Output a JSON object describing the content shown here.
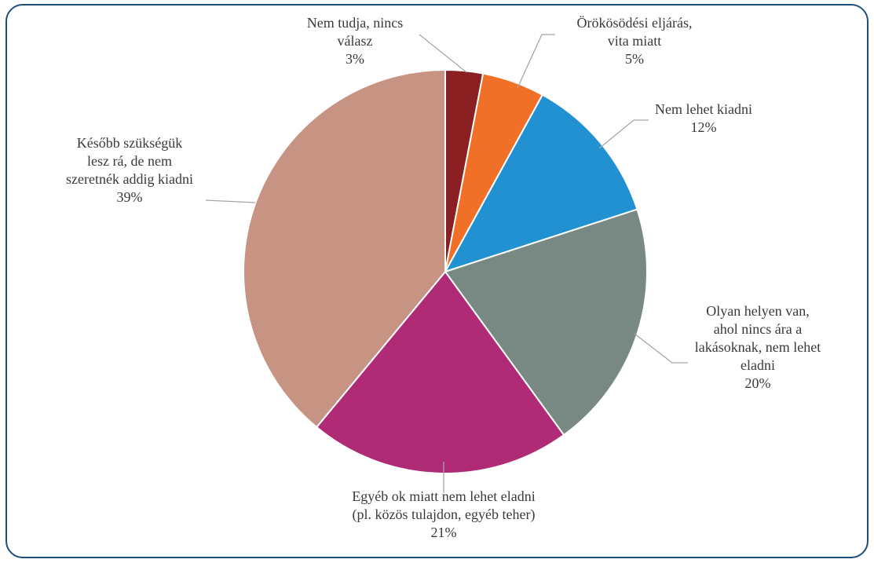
{
  "chart_data": {
    "type": "pie",
    "title": "",
    "start_angle_deg": 0,
    "direction": "clockwise",
    "slices": [
      {
        "label_lines": [
          "Nem tudja, nincs",
          "válasz"
        ],
        "pct_label": "3%",
        "value": 3,
        "color": "#8b2023"
      },
      {
        "label_lines": [
          "Örökösödési eljárás,",
          "vita miatt"
        ],
        "pct_label": "5%",
        "value": 5,
        "color": "#f07028"
      },
      {
        "label_lines": [
          "Nem lehet kiadni"
        ],
        "pct_label": "12%",
        "value": 12,
        "color": "#2191d1"
      },
      {
        "label_lines": [
          "Olyan helyen van,",
          "ahol nincs ára a",
          "lakásoknak, nem lehet",
          "eladni"
        ],
        "pct_label": "20%",
        "value": 20,
        "color": "#778982"
      },
      {
        "label_lines": [
          "Egyéb ok miatt nem lehet eladni",
          "(pl. közös tulajdon, egyéb teher)"
        ],
        "pct_label": "21%",
        "value": 21,
        "color": "#b02b76"
      },
      {
        "label_lines": [
          "Később szükségük",
          "lesz rá, de nem",
          "szeretnék addig kiadni"
        ],
        "pct_label": "39%",
        "value": 39,
        "color": "#c79483"
      }
    ]
  }
}
